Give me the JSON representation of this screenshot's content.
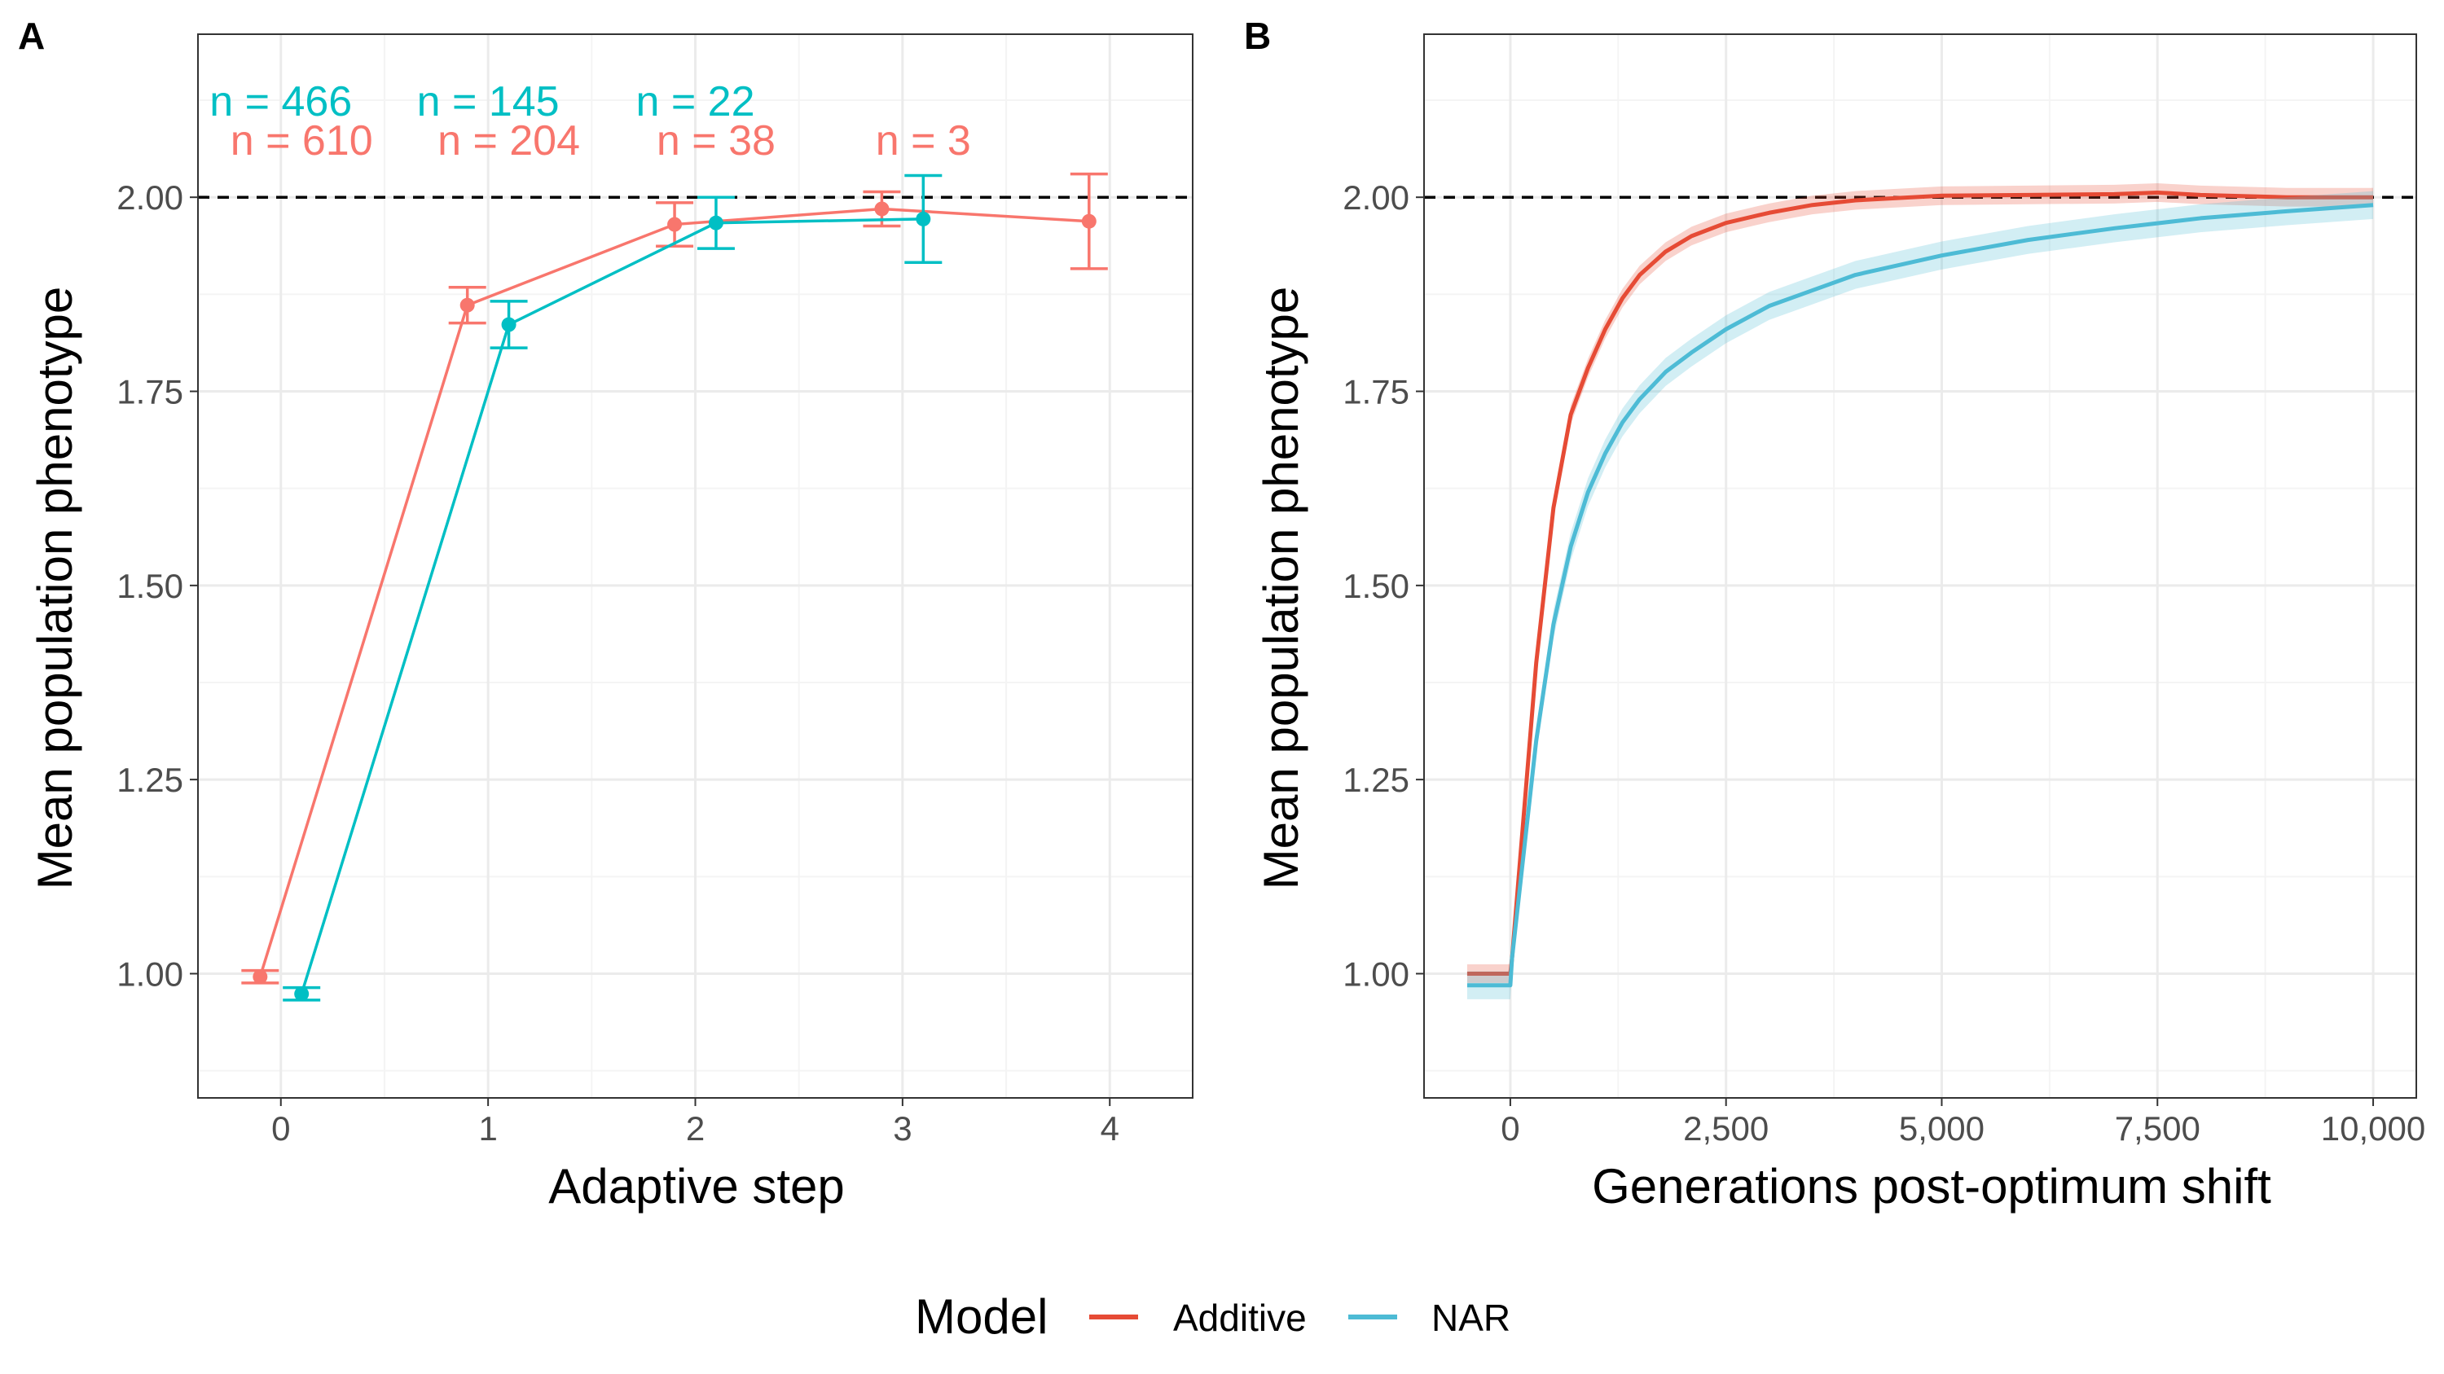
{
  "colors": {
    "additive_a": "#F8766D",
    "nar_a": "#00BFC4",
    "additive_b": "#E64B35",
    "nar_b": "#4DBBD5",
    "grid_major": "#EBEBEB",
    "grid_minor": "#F4F4F4",
    "axis_text": "#4D4D4D"
  },
  "legend": {
    "title": "Model",
    "items": [
      {
        "label": "Additive",
        "color": "#E64B35"
      },
      {
        "label": "NAR",
        "color": "#4DBBD5"
      }
    ]
  },
  "chart_data": [
    {
      "panel": "A",
      "type": "line",
      "xlabel": "Adaptive step",
      "ylabel": "Mean population phenotype",
      "xlim": [
        -0.4,
        4.4
      ],
      "ylim": [
        0.84,
        2.21
      ],
      "x_ticks": [
        0,
        1,
        2,
        3,
        4
      ],
      "x_tick_labels": [
        "0",
        "1",
        "2",
        "3",
        "4"
      ],
      "y_ticks": [
        1.0,
        1.25,
        1.5,
        1.75,
        2.0
      ],
      "y_tick_labels": [
        "1.00",
        "1.25",
        "1.50",
        "1.75",
        "2.00"
      ],
      "reference_line": 2.0,
      "grid": true,
      "series": [
        {
          "name": "Additive",
          "color": "#F8766D",
          "x": [
            0,
            1,
            2,
            3,
            4
          ],
          "y": [
            0.996,
            1.861,
            1.965,
            1.985,
            1.969
          ],
          "err_low": [
            0.988,
            1.838,
            1.937,
            1.963,
            1.908
          ],
          "err_high": [
            1.004,
            1.884,
            1.993,
            2.007,
            2.03
          ],
          "annotations": [
            "n = 610",
            "n = 204",
            "n = 38",
            "n = 3"
          ]
        },
        {
          "name": "NAR",
          "color": "#00BFC4",
          "x": [
            0,
            1,
            2,
            3
          ],
          "y": [
            0.974,
            1.836,
            1.967,
            1.972
          ],
          "err_low": [
            0.966,
            1.806,
            1.934,
            1.916
          ],
          "err_high": [
            0.982,
            1.866,
            2.0,
            2.028
          ],
          "annotations": [
            "n = 466",
            "n = 145",
            "n = 22"
          ]
        }
      ]
    },
    {
      "panel": "B",
      "type": "line",
      "xlabel": "Generations post-optimum shift",
      "ylabel": "Mean population phenotype",
      "xlim": [
        -1000,
        10500
      ],
      "ylim": [
        0.84,
        2.21
      ],
      "x_ticks": [
        0,
        2500,
        5000,
        7500,
        10000
      ],
      "x_tick_labels": [
        "0",
        "2,500",
        "5,000",
        "7,500",
        "10,000"
      ],
      "y_ticks": [
        1.0,
        1.25,
        1.5,
        1.75,
        2.0
      ],
      "y_tick_labels": [
        "1.00",
        "1.25",
        "1.50",
        "1.75",
        "2.00"
      ],
      "reference_line": 2.0,
      "grid": true,
      "series": [
        {
          "name": "Additive",
          "color": "#E64B35",
          "x": [
            -500,
            0,
            20,
            300,
            500,
            700,
            900,
            1100,
            1300,
            1500,
            1800,
            2100,
            2500,
            3000,
            3500,
            4000,
            5000,
            6000,
            7000,
            7500,
            8000,
            9000,
            10000
          ],
          "y": [
            1.0,
            1.0,
            1.02,
            1.4,
            1.6,
            1.72,
            1.78,
            1.83,
            1.87,
            1.9,
            1.93,
            1.95,
            1.967,
            1.98,
            1.99,
            1.996,
            2.002,
            2.003,
            2.004,
            2.006,
            2.003,
            2.0,
            2.0
          ],
          "band": 0.012
        },
        {
          "name": "NAR",
          "color": "#4DBBD5",
          "x": [
            -500,
            0,
            20,
            300,
            500,
            700,
            900,
            1100,
            1300,
            1500,
            1800,
            2100,
            2500,
            3000,
            3500,
            4000,
            5000,
            6000,
            7000,
            8000,
            9000,
            10000
          ],
          "y": [
            0.985,
            0.985,
            1.02,
            1.3,
            1.45,
            1.55,
            1.62,
            1.67,
            1.71,
            1.74,
            1.775,
            1.8,
            1.83,
            1.86,
            1.88,
            1.9,
            1.925,
            1.945,
            1.96,
            1.973,
            1.982,
            1.99
          ],
          "band": 0.018
        }
      ]
    }
  ]
}
